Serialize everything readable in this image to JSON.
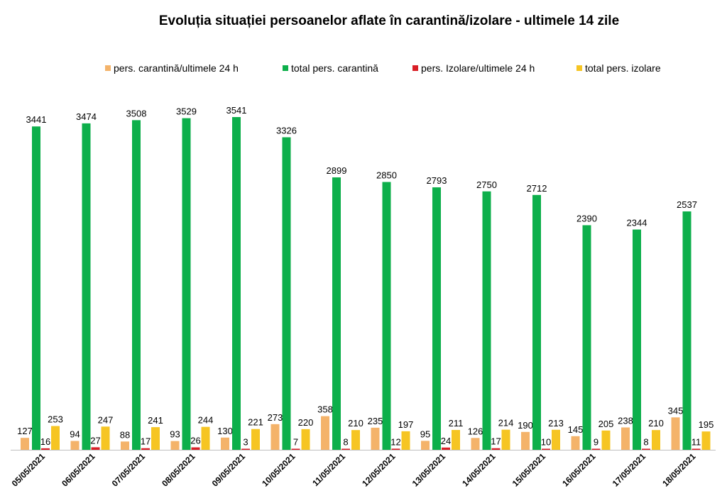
{
  "chart_data": {
    "type": "bar",
    "title": "Evoluția situației persoanelor aflate în carantină/izolare - ultimele 14 zile",
    "xlabel": "",
    "ylabel": "",
    "ylim": [
      0,
      3600
    ],
    "grid": false,
    "legend_position": "top",
    "data_labels": true,
    "categories": [
      "05/05/2021",
      "06/05/2021",
      "07/05/2021",
      "08/05/2021",
      "09/05/2021",
      "10/05/2021",
      "11/05/2021",
      "12/05/2021",
      "13/05/2021",
      "14/05/2021",
      "15/05/2021",
      "16/05/2021",
      "17/05/2021",
      "18/05/2021"
    ],
    "series": [
      {
        "name": "pers. carantină/ultimele 24 h",
        "color": "#F4B36A",
        "values": [
          127,
          94,
          88,
          93,
          130,
          273,
          358,
          235,
          95,
          126,
          190,
          145,
          238,
          345
        ]
      },
      {
        "name": "total pers. carantină",
        "color": "#0DAF4B",
        "values": [
          3441,
          3474,
          3508,
          3529,
          3541,
          3326,
          2899,
          2850,
          2793,
          2750,
          2712,
          2390,
          2344,
          2537
        ]
      },
      {
        "name": "pers. Izolare/ultimele 24 h",
        "color": "#D91F26",
        "values": [
          16,
          27,
          17,
          26,
          3,
          7,
          8,
          12,
          24,
          17,
          10,
          9,
          8,
          11
        ]
      },
      {
        "name": "total pers. izolare",
        "color": "#F6C523",
        "values": [
          253,
          247,
          241,
          244,
          221,
          220,
          210,
          197,
          211,
          214,
          213,
          205,
          210,
          195
        ]
      }
    ]
  }
}
